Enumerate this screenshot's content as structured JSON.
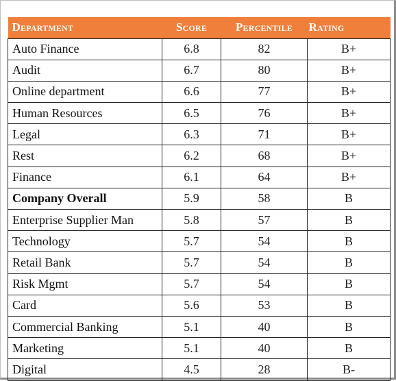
{
  "table": {
    "headers": {
      "department": "Department",
      "score": "Score",
      "percentile": "Percentile",
      "rating": "Rating"
    },
    "header_color": "#ef7f3b",
    "rows": [
      {
        "department": "Auto Finance",
        "score": "6.8",
        "percentile": "82",
        "rating": "B+",
        "bold": false
      },
      {
        "department": "Audit",
        "score": "6.7",
        "percentile": "80",
        "rating": "B+",
        "bold": false
      },
      {
        "department": "Online department",
        "score": "6.6",
        "percentile": "77",
        "rating": "B+",
        "bold": false
      },
      {
        "department": "Human Resources",
        "score": "6.5",
        "percentile": "76",
        "rating": "B+",
        "bold": false
      },
      {
        "department": "Legal",
        "score": "6.3",
        "percentile": "71",
        "rating": "B+",
        "bold": false
      },
      {
        "department": "Rest",
        "score": "6.2",
        "percentile": "68",
        "rating": "B+",
        "bold": false
      },
      {
        "department": "Finance",
        "score": "6.1",
        "percentile": "64",
        "rating": "B+",
        "bold": false
      },
      {
        "department": "Company Overall",
        "score": "5.9",
        "percentile": "58",
        "rating": "B",
        "bold": true
      },
      {
        "department": "Enterprise Supplier Man",
        "score": "5.8",
        "percentile": "57",
        "rating": "B",
        "bold": false
      },
      {
        "department": "Technology",
        "score": "5.7",
        "percentile": "54",
        "rating": "B",
        "bold": false
      },
      {
        "department": "Retail Bank",
        "score": "5.7",
        "percentile": "54",
        "rating": "B",
        "bold": false
      },
      {
        "department": "Risk Mgmt",
        "score": "5.7",
        "percentile": "54",
        "rating": "B",
        "bold": false
      },
      {
        "department": "Card",
        "score": "5.6",
        "percentile": "53",
        "rating": "B",
        "bold": false
      },
      {
        "department": "Commercial Banking",
        "score": "5.1",
        "percentile": "40",
        "rating": "B",
        "bold": false
      },
      {
        "department": "Marketing",
        "score": "5.1",
        "percentile": "40",
        "rating": "B",
        "bold": false
      },
      {
        "department": "Digital",
        "score": "4.5",
        "percentile": "28",
        "rating": "B-",
        "bold": false
      }
    ]
  }
}
